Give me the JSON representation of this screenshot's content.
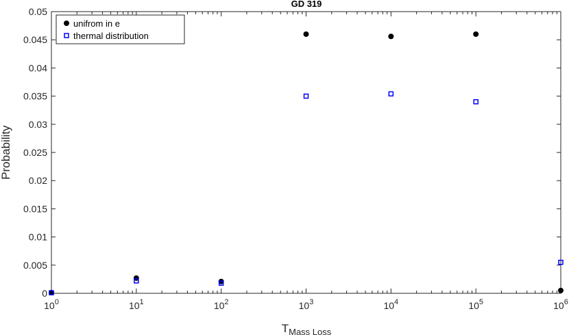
{
  "chart_data": {
    "type": "scatter",
    "title": "GD 319",
    "xlabel_main": "T",
    "xlabel_sub": "Mass Loss",
    "ylabel": "Probability",
    "xscale": "log",
    "xlim": [
      1,
      1000000
    ],
    "ylim": [
      0,
      0.05
    ],
    "x_ticks": [
      {
        "base": "10",
        "exp": "0"
      },
      {
        "base": "10",
        "exp": "1"
      },
      {
        "base": "10",
        "exp": "2"
      },
      {
        "base": "10",
        "exp": "3"
      },
      {
        "base": "10",
        "exp": "4"
      },
      {
        "base": "10",
        "exp": "5"
      },
      {
        "base": "10",
        "exp": "6"
      }
    ],
    "y_ticks": [
      "0",
      "0.005",
      "0.01",
      "0.015",
      "0.02",
      "0.025",
      "0.03",
      "0.035",
      "0.04",
      "0.045",
      "0.05"
    ],
    "legend_position": "top-left",
    "grid": false,
    "x": [
      1,
      10,
      100,
      1000,
      10000,
      100000,
      1000000
    ],
    "series": [
      {
        "name": "unifrom in e",
        "marker": "filled-circle",
        "color": "#000000",
        "values": [
          0.0001,
          0.0027,
          0.0021,
          0.046,
          0.0456,
          0.046,
          0.0005
        ]
      },
      {
        "name": "thermal distribution",
        "marker": "open-square",
        "color": "#0000ff",
        "values": [
          0.0001,
          0.0022,
          0.0018,
          0.035,
          0.0354,
          0.034,
          0.0055
        ]
      }
    ]
  }
}
